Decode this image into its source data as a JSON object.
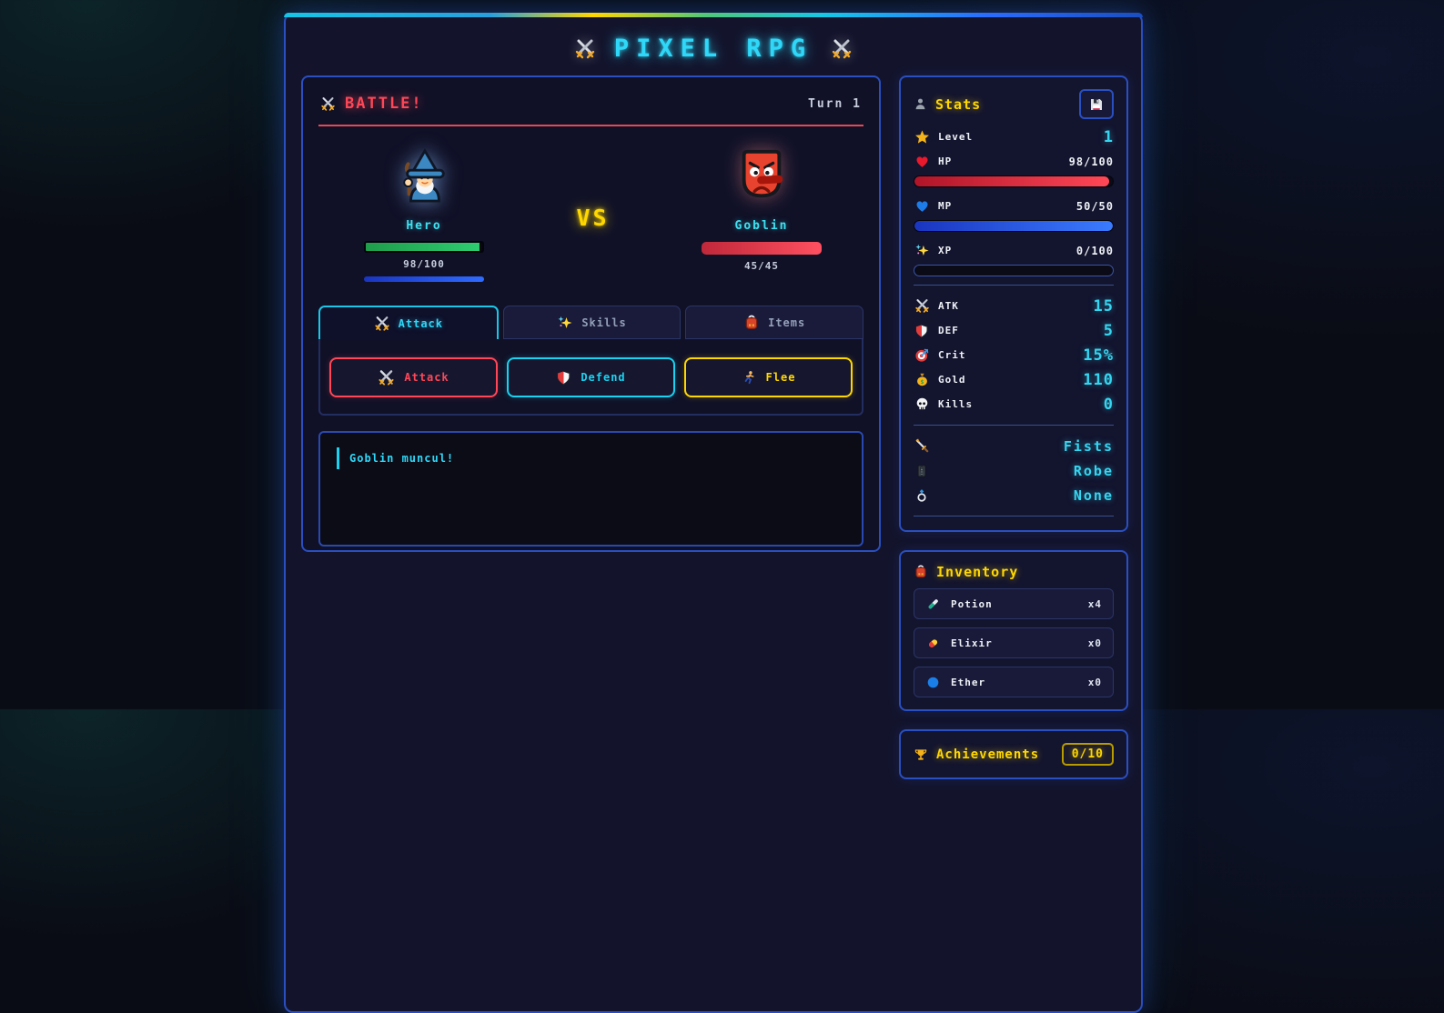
{
  "app": {
    "title": "PIXEL RPG"
  },
  "battle": {
    "title": "BATTLE!",
    "turn": "Turn 1",
    "hero": {
      "name": "Hero",
      "hp": "98/100",
      "hp_pct": 98,
      "mp_pct": 100
    },
    "vs": "VS",
    "enemy": {
      "name": "Goblin",
      "hp": "45/45",
      "hp_pct": 100
    },
    "tabs": [
      {
        "label": "Attack"
      },
      {
        "label": "Skills"
      },
      {
        "label": "Items"
      }
    ],
    "actions": [
      {
        "label": "Attack"
      },
      {
        "label": "Defend"
      },
      {
        "label": "Flee"
      }
    ],
    "log": [
      {
        "text": "Goblin muncul!"
      }
    ]
  },
  "stats": {
    "title": "Stats",
    "level": {
      "label": "Level",
      "value": "1"
    },
    "hp": {
      "label": "HP",
      "value": "98/100",
      "pct": 98
    },
    "mp": {
      "label": "MP",
      "value": "50/50",
      "pct": 100
    },
    "xp": {
      "label": "XP",
      "value": "0/100",
      "pct": 0
    },
    "attrs": [
      {
        "label": "ATK",
        "value": "15",
        "icon": "crossed-swords"
      },
      {
        "label": "DEF",
        "value": "5",
        "icon": "shield"
      },
      {
        "label": "Crit",
        "value": "15%",
        "icon": "target"
      },
      {
        "label": "Gold",
        "value": "110",
        "icon": "money-bag"
      },
      {
        "label": "Kills",
        "value": "0",
        "icon": "skull"
      }
    ],
    "equipment": [
      {
        "slot": "weapon",
        "value": "Fists",
        "icon": "dagger"
      },
      {
        "slot": "armor",
        "value": "Robe",
        "icon": "coat"
      },
      {
        "slot": "accessory",
        "value": "None",
        "icon": "ring"
      }
    ]
  },
  "inventory": {
    "title": "Inventory",
    "items": [
      {
        "name": "Potion",
        "count": "x4",
        "icon": "test-tube"
      },
      {
        "name": "Elixir",
        "count": "x0",
        "icon": "pill"
      },
      {
        "name": "Ether",
        "count": "x0",
        "icon": "blue-circle"
      }
    ]
  },
  "achievements": {
    "title": "Achievements",
    "progress": "0/10"
  },
  "colors": {
    "accent_cyan": "#2fd8f8",
    "accent_yellow": "#ffd700",
    "accent_red": "#ff4757",
    "panel_border": "#2a4fc0",
    "hp_green": "#2ecc71",
    "hp_red": "#ff4757",
    "mp_blue": "#3a7bff"
  }
}
